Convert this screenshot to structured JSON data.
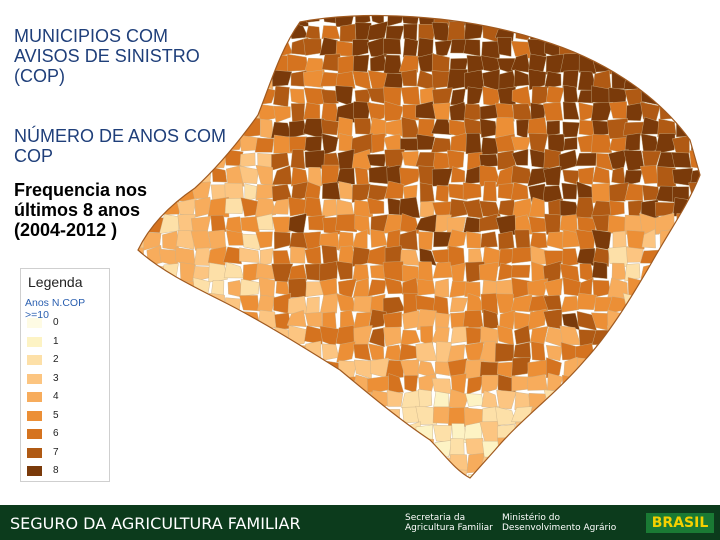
{
  "title": "MUNICIPIOS COM\nAVISOS DE SINISTRO\n(COP)",
  "subtitle": "NÚMERO DE ANOS COM COP",
  "frequency_text": "Frequencia nos últimos 8 anos (2004-2012 )",
  "legend": {
    "title": "Legenda",
    "subtitle": "Anos N.COP >=10",
    "items": [
      {
        "label": "0",
        "color": "#fefbe4"
      },
      {
        "label": "1",
        "color": "#fdf3c4"
      },
      {
        "label": "2",
        "color": "#fde0a8"
      },
      {
        "label": "3",
        "color": "#fcc581"
      },
      {
        "label": "4",
        "color": "#f7ac5c"
      },
      {
        "label": "5",
        "color": "#ec8f36"
      },
      {
        "label": "6",
        "color": "#d5731f"
      },
      {
        "label": "7",
        "color": "#b05a14"
      },
      {
        "label": "8",
        "color": "#7a3a0a"
      }
    ]
  },
  "footer": {
    "title": "SEGURO DA AGRICULTURA FAMILIAR",
    "logo_text_1": "Secretaria da Agricultura Familiar",
    "logo_text_2": "Ministério do Desenvolvimento Agrário",
    "brand": "BRASIL",
    "background": "#0c3b1c"
  }
}
